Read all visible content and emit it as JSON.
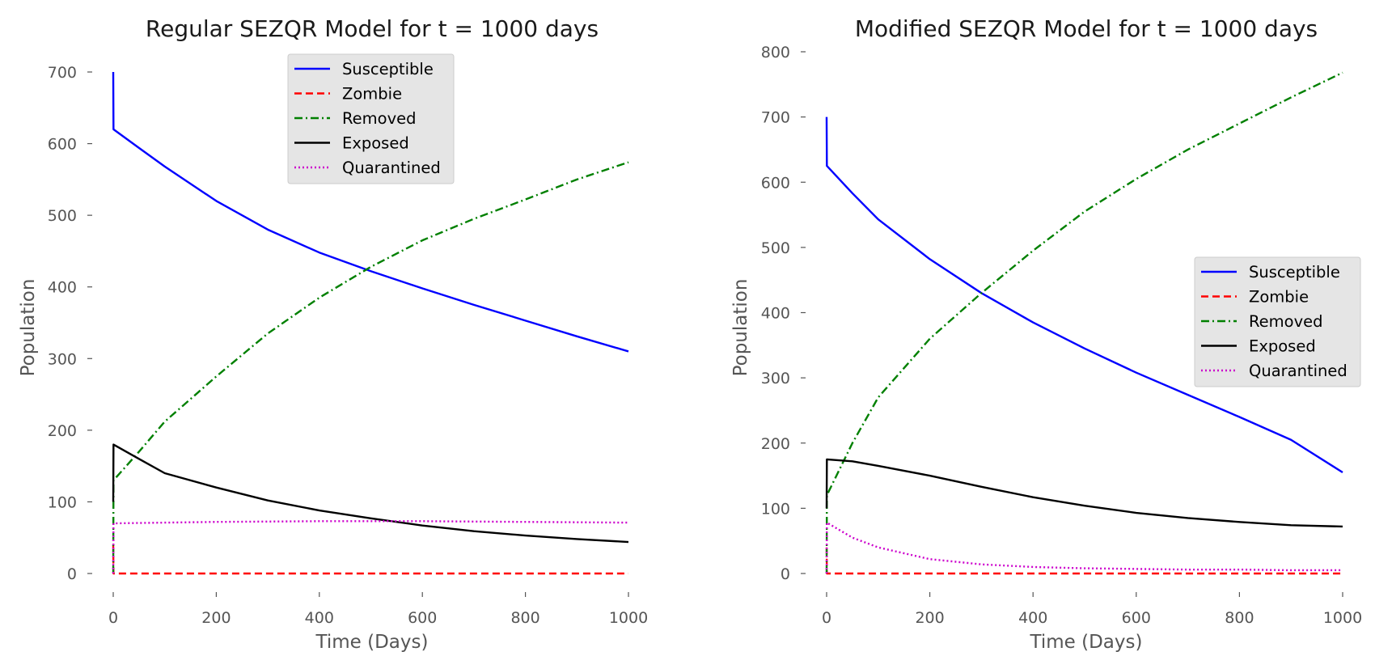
{
  "chart_data": [
    {
      "type": "line",
      "title": "Regular SEZQR Model for t = 1000 days",
      "xlabel": "Time (Days)",
      "ylabel": "Population",
      "xlim": [
        0,
        1000
      ],
      "ylim": [
        0,
        700
      ],
      "xticks": [
        "0",
        "200",
        "400",
        "600",
        "800",
        "1000"
      ],
      "yticks": [
        "0",
        "100",
        "200",
        "300",
        "400",
        "500",
        "600",
        "700"
      ],
      "grid": false,
      "legend_position": "top-center",
      "series": [
        {
          "name": "Susceptible",
          "color": "#0000ff",
          "style": "solid",
          "x": [
            0,
            0.5,
            50,
            100,
            200,
            300,
            400,
            500,
            600,
            700,
            800,
            900,
            1000
          ],
          "y": [
            700,
            620,
            594,
            568,
            520,
            480,
            448,
            422,
            398,
            375,
            353,
            331,
            310
          ]
        },
        {
          "name": "Zombie",
          "color": "#ff0000",
          "style": "dashed",
          "x": [
            0,
            0.5,
            1000
          ],
          "y": [
            40,
            0,
            0
          ]
        },
        {
          "name": "Removed",
          "color": "#008000",
          "style": "dashdot",
          "x": [
            0,
            0.5,
            50,
            100,
            200,
            300,
            400,
            500,
            600,
            700,
            800,
            900,
            1000
          ],
          "y": [
            0,
            130,
            170,
            212,
            275,
            335,
            385,
            428,
            465,
            495,
            522,
            550,
            574
          ]
        },
        {
          "name": "Exposed",
          "color": "#000000",
          "style": "solid",
          "x": [
            0,
            0.5,
            50,
            100,
            200,
            300,
            400,
            500,
            600,
            700,
            800,
            900,
            1000
          ],
          "y": [
            100,
            180,
            160,
            140,
            120,
            102,
            88,
            77,
            67,
            59,
            53,
            48,
            44
          ]
        },
        {
          "name": "Quarantined",
          "color": "#cc00cc",
          "style": "dotted",
          "x": [
            0,
            0.5,
            100,
            200,
            400,
            600,
            800,
            1000
          ],
          "y": [
            0,
            70,
            71,
            72,
            73,
            73,
            72,
            71
          ]
        }
      ]
    },
    {
      "type": "line",
      "title": "Modified SEZQR Model for t = 1000 days",
      "xlabel": "Time (Days)",
      "ylabel": "Population",
      "xlim": [
        0,
        1000
      ],
      "ylim": [
        0,
        800
      ],
      "xticks": [
        "0",
        "200",
        "400",
        "600",
        "800",
        "1000"
      ],
      "yticks": [
        "0",
        "100",
        "200",
        "300",
        "400",
        "500",
        "600",
        "700",
        "800"
      ],
      "grid": false,
      "legend_position": "center-right",
      "series": [
        {
          "name": "Susceptible",
          "color": "#0000ff",
          "style": "solid",
          "x": [
            0,
            0.5,
            50,
            100,
            200,
            300,
            400,
            500,
            600,
            700,
            800,
            900,
            1000
          ],
          "y": [
            700,
            625,
            583,
            543,
            482,
            430,
            385,
            345,
            308,
            274,
            240,
            205,
            155
          ]
        },
        {
          "name": "Zombie",
          "color": "#ff0000",
          "style": "dashed",
          "x": [
            0,
            0.5,
            1000
          ],
          "y": [
            40,
            0,
            0
          ]
        },
        {
          "name": "Removed",
          "color": "#008000",
          "style": "dashdot",
          "x": [
            0,
            0.5,
            50,
            100,
            200,
            300,
            400,
            500,
            600,
            700,
            800,
            900,
            1000
          ],
          "y": [
            0,
            120,
            200,
            270,
            360,
            430,
            495,
            555,
            605,
            650,
            690,
            730,
            768
          ]
        },
        {
          "name": "Exposed",
          "color": "#000000",
          "style": "solid",
          "x": [
            0,
            0.5,
            50,
            100,
            200,
            300,
            400,
            500,
            600,
            700,
            800,
            900,
            1000
          ],
          "y": [
            100,
            175,
            172,
            165,
            150,
            133,
            117,
            104,
            93,
            85,
            79,
            74,
            72
          ]
        },
        {
          "name": "Quarantined",
          "color": "#cc00cc",
          "style": "dotted",
          "x": [
            0,
            0.5,
            50,
            100,
            200,
            300,
            400,
            500,
            600,
            700,
            800,
            900,
            1000
          ],
          "y": [
            0,
            78,
            55,
            40,
            22,
            14,
            10,
            8,
            7,
            6,
            6,
            5,
            5
          ]
        }
      ]
    }
  ]
}
